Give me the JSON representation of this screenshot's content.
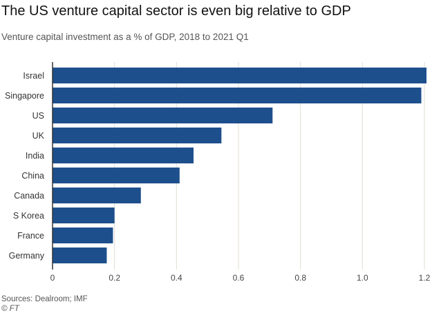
{
  "header": {
    "title": "The US venture capital sector is even big relative to GDP",
    "subtitle": "Venture capital investment as a % of GDP, 2018 to 2021 Q1"
  },
  "footer": {
    "source": "Sources: Dealroom; IMF",
    "credit": "© FT"
  },
  "colors": {
    "bar": "#1d4f8c",
    "grid": "#e2dcd2",
    "axis": "#333333"
  },
  "chart_data": {
    "type": "bar",
    "orientation": "horizontal",
    "title": "The US venture capital sector is even big relative to GDP",
    "subtitle": "Venture capital investment as a % of GDP, 2018 to 2021 Q1",
    "categories": [
      "Israel",
      "Singapore",
      "US",
      "UK",
      "India",
      "China",
      "Canada",
      "S Korea",
      "France",
      "Germany"
    ],
    "values": [
      1.21,
      1.19,
      0.71,
      0.545,
      0.455,
      0.41,
      0.285,
      0.2,
      0.195,
      0.175
    ],
    "xlim": [
      0,
      1.2
    ],
    "xticks": [
      "0",
      "0.2",
      "0.4",
      "0.6",
      "0.8",
      "1.0",
      "1.2"
    ],
    "xlabel": "",
    "ylabel": "",
    "grid": true,
    "legend": "none"
  }
}
